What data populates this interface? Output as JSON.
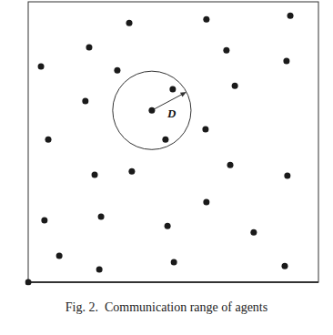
{
  "chart_data": {
    "type": "scatter",
    "title": "Fig. 2.  Communication range of agents",
    "x": [
      34.8,
      61.4,
      90.3,
      21.0,
      68.3,
      4.4,
      30.7,
      89.0,
      49.8,
      71.2,
      19.7,
      42.6,
      6.9,
      61.1,
      47.3,
      22.9,
      35.7,
      69.6,
      89.3,
      61.4,
      5.6,
      25.1,
      48.0,
      77.7,
      10.7,
      24.5,
      50.2,
      88.4,
      0
    ],
    "values": [
      89.3,
      90.6,
      91.8,
      80.9,
      79.9,
      74.3,
      73.0,
      76.2,
      66.5,
      67.7,
      62.4,
      59.2,
      49.2,
      52.7,
      49.2,
      37.0,
      38.2,
      40.4,
      36.7,
      27.6,
      21.3,
      22.6,
      19.4,
      17.2,
      9.1,
      4.4,
      6.9,
      5.6,
      0
    ],
    "color": "#1a1a1a",
    "marker": "circle",
    "xlim": [
      0,
      100
    ],
    "ylim": [
      0,
      96.6
    ],
    "tick_labels": false,
    "communication_range": {
      "x": 42.6,
      "y": 59.2,
      "radius": 13.5,
      "label": "D"
    }
  }
}
